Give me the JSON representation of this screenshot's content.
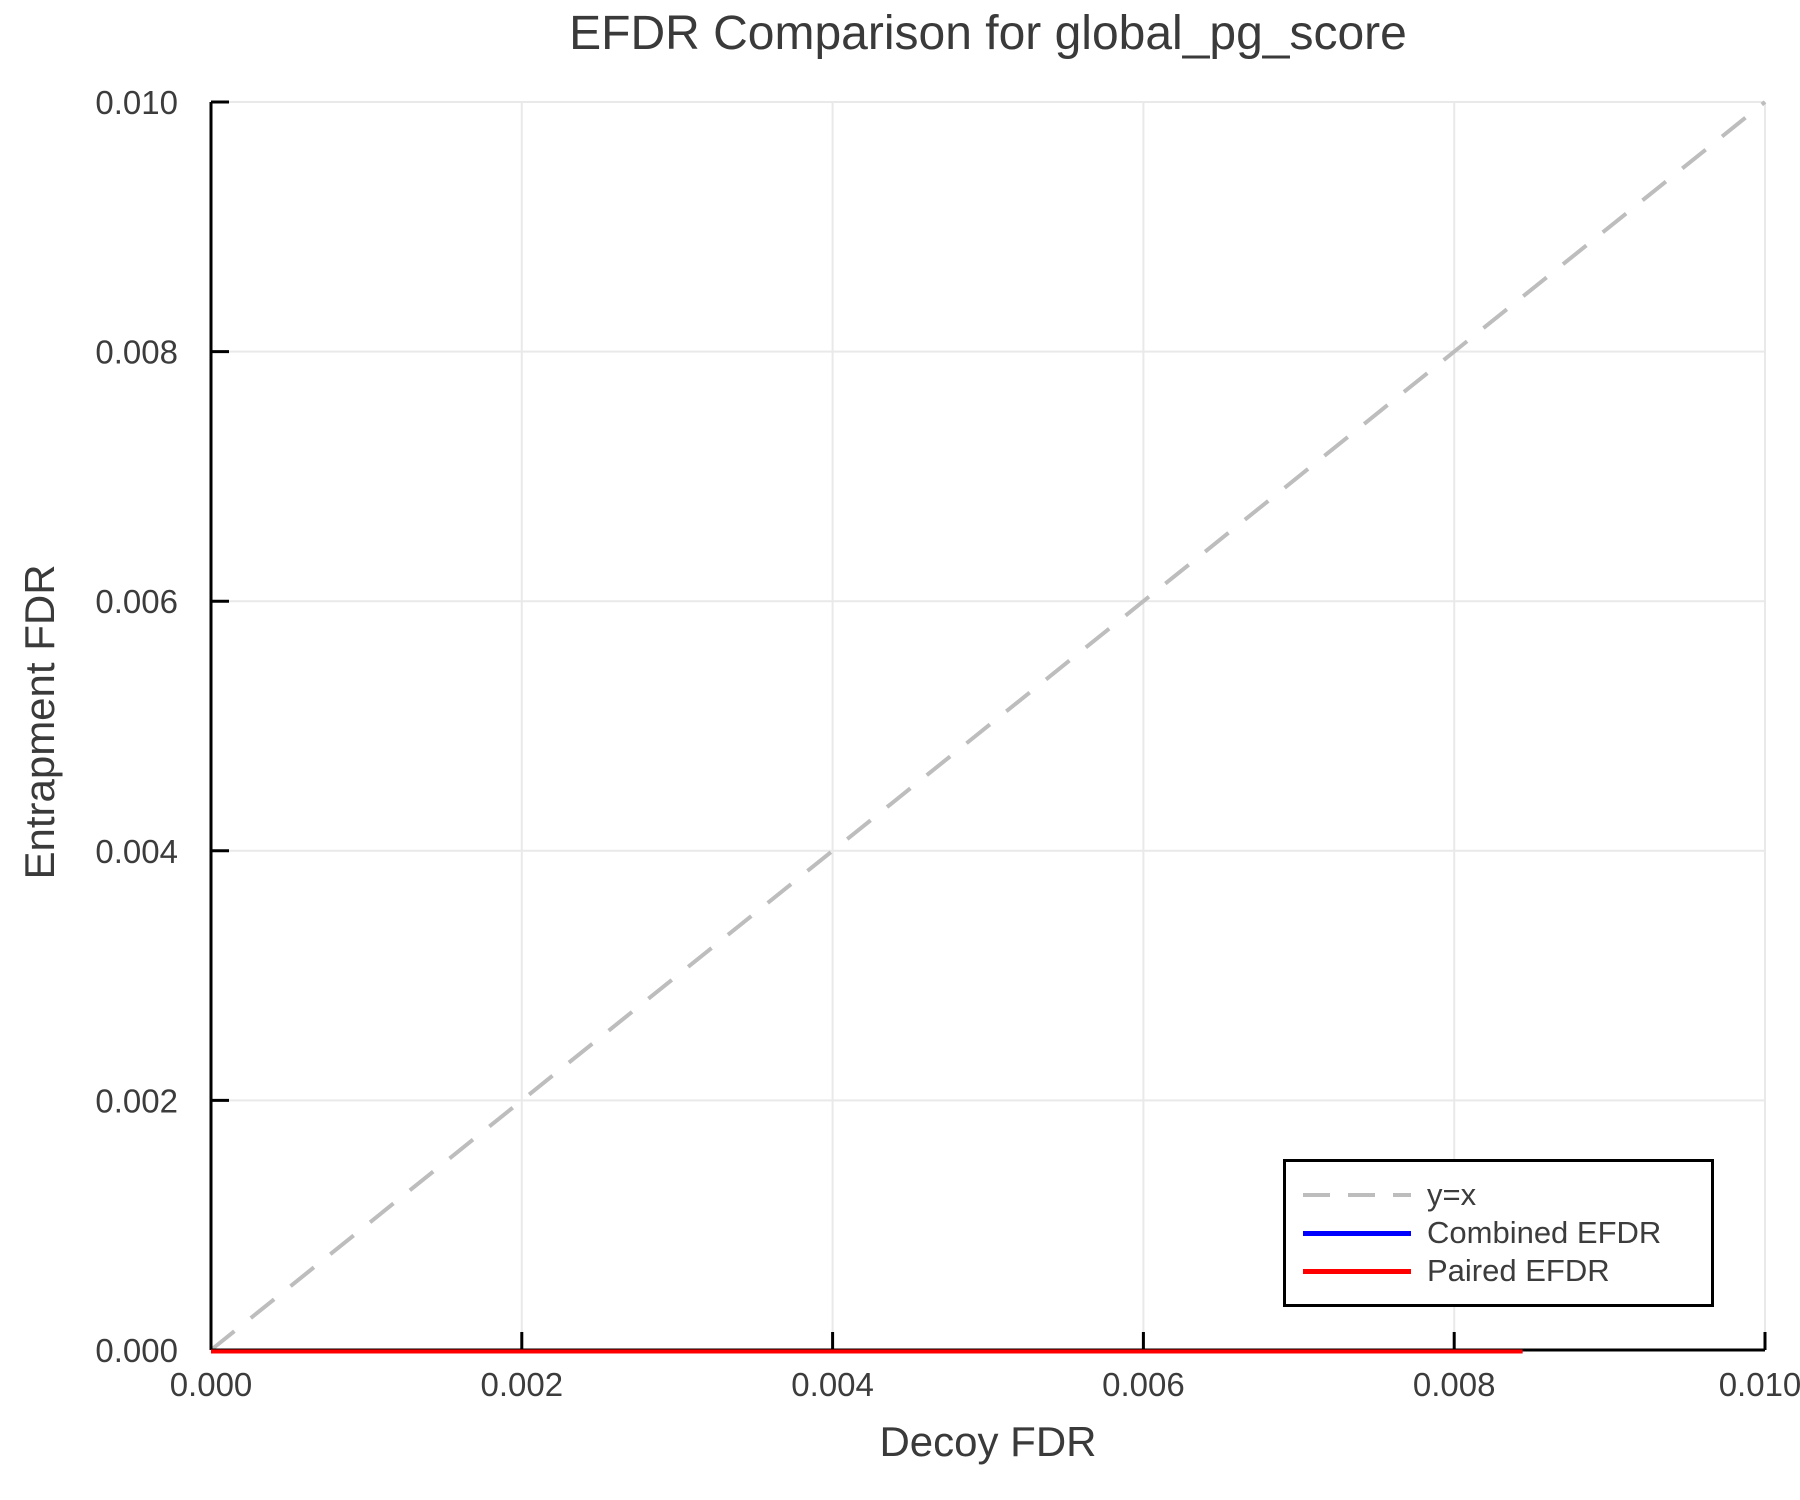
{
  "chart_data": {
    "type": "line",
    "title": "EFDR Comparison for global_pg_score",
    "xlabel": "Decoy FDR",
    "ylabel": "Entrapment FDR",
    "xlim": [
      0.0,
      0.01
    ],
    "ylim": [
      0.0,
      0.01
    ],
    "xticks": {
      "values": [
        0.0,
        0.002,
        0.004,
        0.006,
        0.008,
        0.01
      ],
      "labels": [
        "0.000",
        "0.002",
        "0.004",
        "0.006",
        "0.008",
        "0.010"
      ]
    },
    "yticks": {
      "values": [
        0.0,
        0.002,
        0.004,
        0.006,
        0.008,
        0.01
      ],
      "labels": [
        "0.000",
        "0.002",
        "0.004",
        "0.006",
        "0.008",
        "0.010"
      ]
    },
    "grid": true,
    "legend_position": "bottom-right",
    "series": [
      {
        "name": "y=x",
        "style": "dashed",
        "color": "#bdbdbd",
        "x": [
          0.0,
          0.01
        ],
        "y": [
          0.0,
          0.01
        ]
      },
      {
        "name": "Combined EFDR",
        "style": "solid",
        "color": "#0000ff",
        "x": [
          0.0,
          0.00844
        ],
        "y": [
          0.0,
          0.0
        ]
      },
      {
        "name": "Paired EFDR",
        "style": "solid",
        "color": "#ff0000",
        "x": [
          0.0,
          0.00844
        ],
        "y": [
          0.0,
          0.0
        ]
      }
    ],
    "colors": {
      "background": "#ffffff",
      "grid": "#e9e9e9",
      "spine": "#000000",
      "tick_text": "#3c3c3c",
      "title_text": "#3a3a3a"
    }
  }
}
